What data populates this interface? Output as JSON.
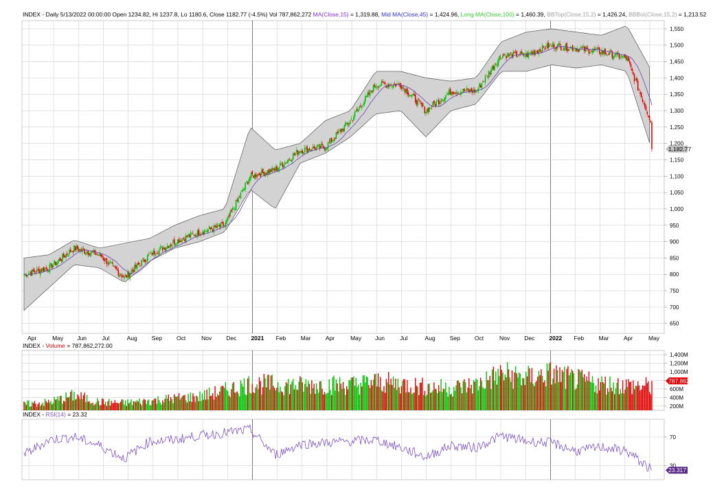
{
  "header": {
    "symbol": "INDEX",
    "desc": " - Daily 5/13/2022 00:00:00 Open 1234.82, Hi 1237.8, Lo 1180.6, Close 1182.77 (-4.5%) Vol 787,862,272",
    "ind": [
      {
        "label": "MA(Close,15)",
        "value": " = 1,319.88,",
        "color": "#8a2be2"
      },
      {
        "label": "Mid MA(Close,45)",
        "value": " = 1,424.96,",
        "color": "#3030d0"
      },
      {
        "label": "Long MA(Close,100)",
        "value": " = 1,460.39,",
        "color": "#32cd32"
      },
      {
        "label": "BBTop(Close,15,2)",
        "value": " = 1,426.24,",
        "color": "#a0a0a0"
      },
      {
        "label": "BBBot(Close,15,2)",
        "value": " = 1,213.52",
        "color": "#a0a0a0"
      }
    ]
  },
  "volume_header": {
    "symbol": "INDEX",
    "label": "Volume",
    "value": " = 787,862,272.00"
  },
  "rsi_header": {
    "symbol": "INDEX",
    "label": "RSI(14)",
    "value": " = 23.32"
  },
  "last_price_label": "1,182.77",
  "last_volume_label": "787.862",
  "last_rsi_label": "23.317",
  "colors": {
    "up": "#00c000",
    "down": "#e00000",
    "band": "#d3d3d3",
    "ma": "#6a3fb5",
    "rsi": "#7b4fc8",
    "grid": "#cfcfcf",
    "badge_price": "#c0c0c0",
    "badge_vol": "#e00000",
    "badge_rsi": "#5a2a8a"
  },
  "chart_data": [
    {
      "type": "candlestick",
      "name": "Price",
      "x_ticks": [
        "Apr",
        "May",
        "Jun",
        "Jul",
        "Aug",
        "Sep",
        "Oct",
        "Nov",
        "Dec",
        "2021",
        "Feb",
        "Mar",
        "Apr",
        "May",
        "Jun",
        "Jul",
        "Aug",
        "Sep",
        "Oct",
        "Nov",
        "Dec",
        "2022",
        "Feb",
        "Mar",
        "Apr",
        "May"
      ],
      "y_ticks": [
        "650",
        "700",
        "750",
        "800",
        "850",
        "900",
        "950",
        "1,000",
        "1,050",
        "1,100",
        "1,150",
        "1,200",
        "1,250",
        "1,300",
        "1,350",
        "1,400",
        "1,450",
        "1,500",
        "1,550"
      ],
      "ylim": [
        620,
        1575
      ],
      "monthly_close": [
        800,
        820,
        880,
        860,
        790,
        860,
        900,
        930,
        950,
        1100,
        1120,
        1180,
        1190,
        1270,
        1380,
        1380,
        1300,
        1360,
        1360,
        1470,
        1470,
        1500,
        1490,
        1480,
        1460,
        1260
      ],
      "bollinger_top": [
        850,
        860,
        905,
        880,
        895,
        910,
        950,
        980,
        1000,
        1250,
        1180,
        1200,
        1270,
        1300,
        1420,
        1420,
        1400,
        1390,
        1400,
        1510,
        1540,
        1550,
        1540,
        1530,
        1560,
        1420
      ],
      "bollinger_bottom": [
        690,
        760,
        830,
        820,
        775,
        840,
        880,
        900,
        930,
        1060,
        1000,
        1140,
        1170,
        1220,
        1290,
        1300,
        1220,
        1300,
        1320,
        1420,
        1420,
        1440,
        1430,
        1440,
        1420,
        1180
      ],
      "last_close": 1182.77
    },
    {
      "type": "bar",
      "name": "Volume",
      "y_ticks": [
        "200M",
        "400M",
        "600M",
        "800M",
        "1,000M",
        "1,200M",
        "1,400M"
      ],
      "ylim": [
        100,
        1500
      ],
      "monthly_volume_m": [
        240,
        290,
        450,
        290,
        270,
        320,
        380,
        420,
        560,
        720,
        700,
        680,
        700,
        690,
        760,
        720,
        640,
        620,
        700,
        950,
        850,
        950,
        800,
        720,
        680,
        650
      ],
      "last_value_m": 787.862
    },
    {
      "type": "line",
      "name": "RSI(14)",
      "y_ticks": [
        "30",
        "70"
      ],
      "ylim": [
        10,
        95
      ],
      "monthly_rsi": [
        45,
        66,
        70,
        58,
        40,
        64,
        66,
        72,
        76,
        80,
        45,
        60,
        62,
        64,
        66,
        55,
        42,
        58,
        55,
        72,
        64,
        62,
        50,
        56,
        50,
        23.32
      ],
      "last_value": 23.317
    }
  ]
}
